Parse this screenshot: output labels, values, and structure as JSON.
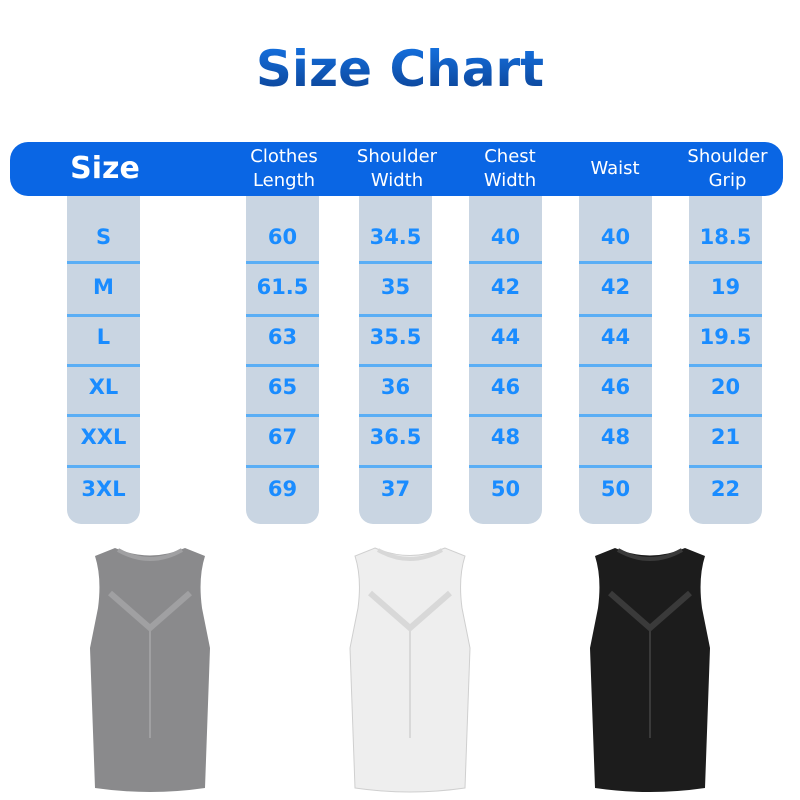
{
  "title": "Size Chart",
  "headers": [
    "Size",
    "Clothes\nLength",
    "Shoulder\nWidth",
    "Chest\nWidth",
    "Waist",
    "Shoulder\nGrip"
  ],
  "columns": [
    [
      "S",
      "M",
      "L",
      "XL",
      "XXL",
      "3XL"
    ],
    [
      "60",
      "61.5",
      "63",
      "65",
      "67",
      "69"
    ],
    [
      "34.5",
      "35",
      "35.5",
      "36",
      "36.5",
      "37"
    ],
    [
      "40",
      "42",
      "44",
      "46",
      "48",
      "50"
    ],
    [
      "40",
      "42",
      "44",
      "46",
      "48",
      "50"
    ],
    [
      "18.5",
      "19",
      "19.5",
      "20",
      "21",
      "22"
    ]
  ],
  "colors": {
    "header": "#0a66e4",
    "column": "#c9d5e2",
    "value": "#1a8cff",
    "divider": "#5aaef5"
  },
  "products": [
    {
      "color": "#8a8a8c",
      "name": "grey-tank-top"
    },
    {
      "color": "#eeeeee",
      "name": "white-tank-top"
    },
    {
      "color": "#1c1c1c",
      "name": "black-tank-top"
    }
  ]
}
